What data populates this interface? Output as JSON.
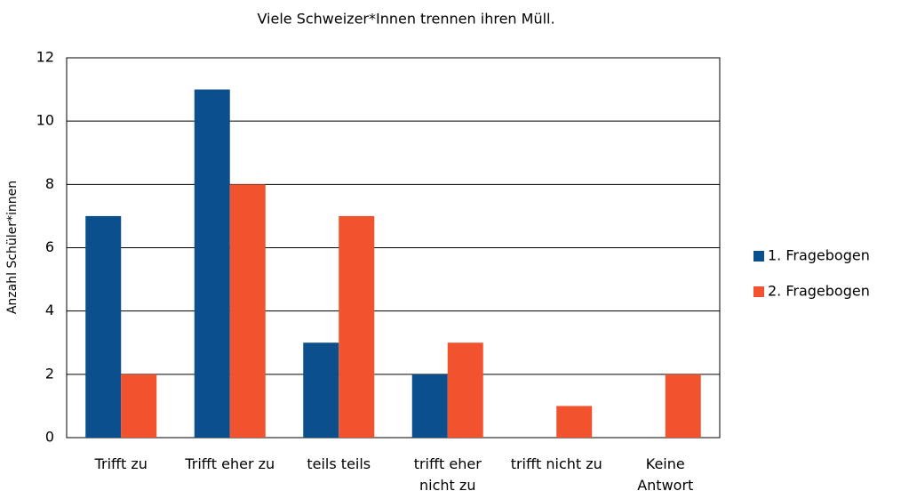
{
  "chart_data": {
    "type": "bar",
    "title": "Viele Schweizer*Innen trennen ihren Müll.",
    "ylabel": "Anzahl Schüler*innen",
    "categories": [
      "Trifft zu",
      "Trifft eher zu",
      "teils teils",
      "trifft eher nicht zu",
      "trifft nicht zu",
      "Keine Antwort"
    ],
    "series": [
      {
        "name": "1. Fragebogen",
        "color": "#0b4f8c",
        "values": [
          7,
          11,
          3,
          2,
          0,
          0
        ]
      },
      {
        "name": "2. Fragebogen",
        "color": "#f0532e",
        "values": [
          2,
          8,
          7,
          3,
          1,
          2
        ]
      }
    ],
    "ylim": [
      0,
      12
    ],
    "yticks": [
      0,
      2,
      4,
      6,
      8,
      10,
      12
    ],
    "grid": true,
    "legend": "right"
  }
}
